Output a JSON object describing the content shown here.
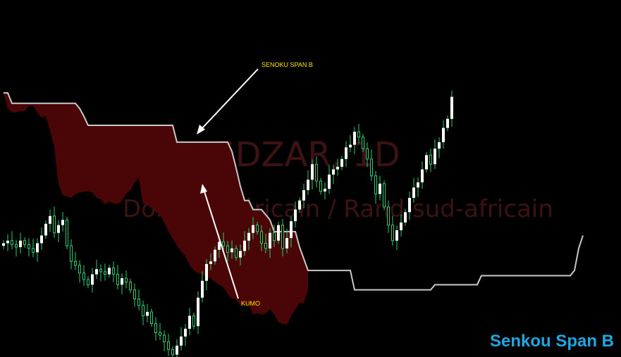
{
  "watermark": {
    "symbol": "USDZAR, 1D",
    "description": "Dollar américain / Rand sud-africain"
  },
  "corner_label": "Senkou Span B",
  "colors": {
    "background": "#000000",
    "candle_up": "#ffffff",
    "candle_wick": "#2ecc71",
    "kumo": "#4a0606",
    "span_b": "#c8c8c8",
    "annotation_text": "#ffe100",
    "arrow": "#ffffff",
    "corner_label": "#1ea7e1"
  },
  "chart_data": {
    "type": "candlestick",
    "instrument": "USDZAR",
    "timeframe": "1D",
    "candles_close": [
      14.64,
      14.66,
      14.63,
      14.61,
      14.66,
      14.63,
      14.6,
      14.57,
      14.64,
      14.7,
      14.79,
      14.85,
      14.72,
      14.78,
      14.82,
      14.62,
      14.5,
      14.47,
      14.41,
      14.36,
      14.32,
      14.4,
      14.44,
      14.42,
      14.4,
      14.45,
      14.4,
      14.32,
      14.37,
      14.34,
      14.28,
      14.21,
      14.16,
      14.08,
      14.11,
      14.02,
      13.95,
      13.93,
      13.88,
      13.82,
      13.78,
      13.85,
      13.92,
      13.98,
      14.08,
      14.0,
      14.22,
      14.35,
      14.48,
      14.5,
      14.59,
      14.65,
      14.62,
      14.57,
      14.6,
      14.53,
      14.58,
      14.66,
      14.72,
      14.78,
      14.73,
      14.64,
      14.6,
      14.72,
      14.66,
      14.78,
      14.6,
      14.68,
      14.81,
      14.9,
      14.97,
      15.05,
      15.13,
      15.25,
      15.12,
      15.04,
      15.06,
      15.17,
      15.21,
      15.23,
      15.29,
      15.38,
      15.4,
      15.5,
      15.46,
      15.37,
      15.29,
      15.16,
      15.02,
      15.1,
      14.92,
      14.78,
      14.66,
      14.74,
      14.8,
      14.88,
      14.99,
      15.07,
      15.11,
      15.21,
      15.32,
      15.25,
      15.37,
      15.42,
      15.53,
      15.6,
      15.77
    ],
    "senkou_span_b": [
      15.8,
      15.8,
      15.72,
      15.72,
      15.72,
      15.72,
      15.72,
      15.72,
      15.72,
      15.72,
      15.72,
      15.72,
      15.72,
      15.72,
      15.72,
      15.72,
      15.72,
      15.72,
      15.68,
      15.62,
      15.55,
      15.55,
      15.55,
      15.55,
      15.55,
      15.55,
      15.55,
      15.55,
      15.55,
      15.55,
      15.55,
      15.55,
      15.55,
      15.55,
      15.55,
      15.55,
      15.55,
      15.55,
      15.55,
      15.55,
      15.55,
      15.42,
      15.42,
      15.42,
      15.42,
      15.42,
      15.42,
      15.42,
      15.42,
      15.42,
      15.42,
      15.42,
      15.42,
      15.42,
      15.35,
      15.22,
      15.08,
      14.97,
      14.97,
      14.9,
      14.9,
      14.9,
      14.86,
      14.82,
      14.73,
      14.73,
      14.73,
      14.73,
      14.73,
      14.73,
      14.61,
      14.52,
      14.43,
      14.43,
      14.43,
      14.43,
      14.43,
      14.43,
      14.43,
      14.43,
      14.43,
      14.43,
      14.43,
      14.28,
      14.28,
      14.28,
      14.28,
      14.28,
      14.28,
      14.28,
      14.28,
      14.28,
      14.28,
      14.28,
      14.28,
      14.28,
      14.28,
      14.28,
      14.28,
      14.28,
      14.28,
      14.28,
      14.32,
      14.32,
      14.32,
      14.32,
      14.32,
      14.32,
      14.32,
      14.32,
      14.32,
      14.32,
      14.32,
      14.39,
      14.39,
      14.39,
      14.39,
      14.39,
      14.39,
      14.39,
      14.39,
      14.39,
      14.39,
      14.39,
      14.39,
      14.39,
      14.39,
      14.39,
      14.39,
      14.39,
      14.39,
      14.39,
      14.39,
      14.39,
      14.39,
      14.43,
      14.6,
      14.7
    ],
    "senkou_span_a": [
      15.8,
      15.68,
      15.65,
      15.65,
      15.66,
      15.66,
      15.7,
      15.7,
      15.65,
      15.61,
      15.62,
      15.51,
      15.38,
      15.1,
      15.01,
      15.0,
      14.99,
      15.02,
      15.03,
      15.04,
      15.04,
      15.03,
      14.99,
      14.98,
      14.94,
      14.96,
      14.95,
      14.94,
      14.97,
      15.02,
      15.05,
      15.11,
      15.14,
      14.94,
      14.94,
      14.91,
      14.88,
      14.86,
      14.8,
      14.73,
      14.68,
      14.62,
      14.58,
      14.54,
      14.47,
      14.43,
      14.41,
      14.4,
      14.38,
      14.37,
      14.34,
      14.32,
      14.3,
      14.25,
      14.21,
      14.21,
      14.16,
      14.16,
      14.17,
      14.09,
      14.1,
      14.09,
      14.1,
      14.13,
      14.09,
      14.03,
      14.02,
      14.01,
      14.08,
      14.13,
      14.18,
      14.18,
      14.28
    ],
    "annotations": [
      {
        "text": "SENOKU SPAN B"
      },
      {
        "text": "KUMO"
      }
    ]
  }
}
